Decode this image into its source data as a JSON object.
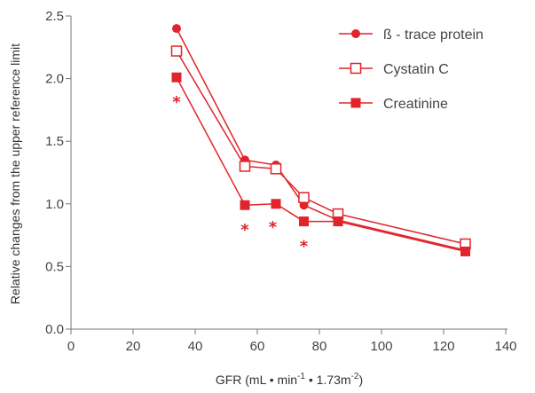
{
  "chart_data": {
    "type": "line",
    "xlabel_main": "GFR (mL • min",
    "xlabel_sup1": "-1",
    "xlabel_mid": " • 1.73m",
    "xlabel_sup2": "-2",
    "xlabel_end": ")",
    "ylabel": "Relative changes from the upper reference limit",
    "xlim": [
      0,
      140
    ],
    "ylim": [
      0.0,
      2.5
    ],
    "x_ticks": [
      0,
      20,
      40,
      60,
      80,
      100,
      120,
      140
    ],
    "y_ticks": [
      0.0,
      0.5,
      1.0,
      1.5,
      2.0,
      2.5
    ],
    "y_tick_labels": [
      "0.0",
      "0.5",
      "1.0",
      "1.5",
      "2.0",
      "2.5"
    ],
    "grid": false,
    "legend_position": "top-right",
    "color": "#e1232b",
    "series": [
      {
        "name": "ß - trace protein",
        "marker": "filled-circle",
        "x": [
          34,
          56,
          66,
          75,
          86,
          127
        ],
        "y": [
          2.4,
          1.35,
          1.31,
          0.99,
          0.87,
          0.63
        ]
      },
      {
        "name": "Cystatin C",
        "marker": "open-square",
        "x": [
          34,
          56,
          66,
          75,
          86,
          127
        ],
        "y": [
          2.22,
          1.3,
          1.28,
          1.05,
          0.92,
          0.68
        ]
      },
      {
        "name": "Creatinine",
        "marker": "filled-square",
        "x": [
          34,
          56,
          66,
          75,
          86,
          127
        ],
        "y": [
          2.01,
          0.99,
          1.0,
          0.86,
          0.86,
          0.62
        ]
      }
    ],
    "annotations": [
      {
        "text": "*",
        "x": 34,
        "y": 1.82
      },
      {
        "text": "*",
        "x": 56,
        "y": 0.8
      },
      {
        "text": "*",
        "x": 65,
        "y": 0.82
      },
      {
        "text": "*",
        "x": 75,
        "y": 0.67
      }
    ]
  }
}
